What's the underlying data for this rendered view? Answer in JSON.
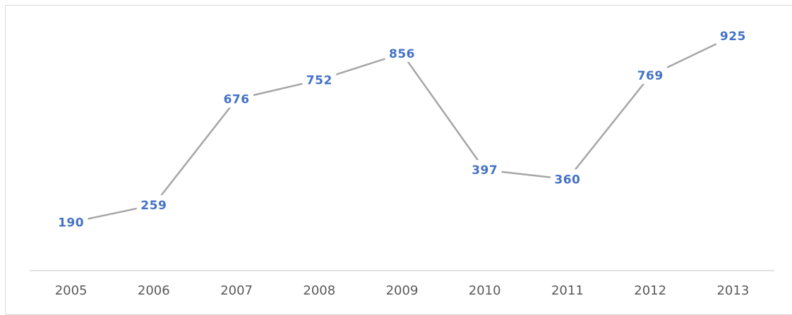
{
  "chart_data": {
    "type": "line",
    "categories": [
      "2005",
      "2006",
      "2007",
      "2008",
      "2009",
      "2010",
      "2011",
      "2012",
      "2013"
    ],
    "series": [
      {
        "values": [
          190,
          259,
          676,
          752,
          856,
          397,
          360,
          769,
          925
        ]
      }
    ],
    "title": "",
    "xlabel": "",
    "ylabel": "",
    "ylim": [
      0,
      1000
    ],
    "grid": false,
    "legend": "none",
    "data_labels": true,
    "colors": {
      "line": "#a6a6a6",
      "label": "#4472c4",
      "axis": "#d9d9d9",
      "tick": "#595959"
    }
  }
}
